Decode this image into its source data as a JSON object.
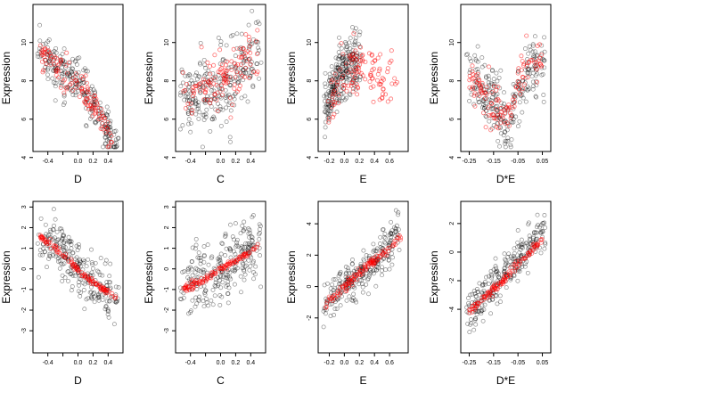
{
  "chart_data": [
    {
      "type": "scatter",
      "xlabel": "D",
      "ylabel": "Expression",
      "xlim": [
        -0.55,
        0.55
      ],
      "ylim": [
        4.5,
        11.8
      ],
      "xticks": [
        -0.4,
        -0.2,
        0.0,
        0.2,
        0.4
      ],
      "xtick_labels": [
        "-0.4",
        "",
        "0.0",
        "0.2",
        "0.4"
      ],
      "yticks": [
        4,
        6,
        8,
        10
      ],
      "ytick_labels": [
        "4",
        "6",
        "8",
        "10"
      ],
      "colors": {
        "observed": "#000000",
        "fitted": "#ff0000"
      },
      "observed_trend": [
        [
          -0.5,
          9.8
        ],
        [
          -0.3,
          8.7
        ],
        [
          -0.1,
          8.2
        ],
        [
          0.1,
          7.6
        ],
        [
          0.3,
          6.0
        ],
        [
          0.5,
          4.8
        ]
      ],
      "observed_spread": 1.1,
      "fitted_trend": [
        [
          -0.5,
          9.5
        ],
        [
          -0.3,
          8.6
        ],
        [
          -0.1,
          8.0
        ],
        [
          0.05,
          7.6
        ],
        [
          0.2,
          6.8
        ],
        [
          0.35,
          5.8
        ],
        [
          0.45,
          4.8
        ]
      ],
      "fitted_spread": 0.7
    },
    {
      "type": "scatter",
      "xlabel": "C",
      "ylabel": "Expression",
      "xlim": [
        -0.55,
        0.55
      ],
      "ylim": [
        4.5,
        11.8
      ],
      "xticks": [
        -0.4,
        -0.2,
        0.0,
        0.2,
        0.4
      ],
      "xtick_labels": [
        "-0.4",
        "",
        "0.0",
        "0.2",
        "0.4"
      ],
      "yticks": [
        4,
        6,
        8,
        10
      ],
      "ytick_labels": [
        "4",
        "6",
        "8",
        "10"
      ],
      "colors": {
        "observed": "#000000",
        "fitted": "#ff0000"
      },
      "observed_trend": [
        [
          -0.5,
          7.2
        ],
        [
          -0.2,
          7.5
        ],
        [
          0.0,
          7.8
        ],
        [
          0.2,
          8.3
        ],
        [
          0.5,
          9.5
        ]
      ],
      "observed_spread": 1.8,
      "fitted_trend": [
        [
          -0.5,
          7.4
        ],
        [
          -0.2,
          7.7
        ],
        [
          0.0,
          8.0
        ],
        [
          0.2,
          8.5
        ],
        [
          0.5,
          9.7
        ]
      ],
      "fitted_spread": 1.2
    },
    {
      "type": "scatter",
      "xlabel": "E",
      "ylabel": "Expression",
      "xlim": [
        -0.3,
        0.8
      ],
      "ylim": [
        4.5,
        11.8
      ],
      "xticks": [
        -0.2,
        0.0,
        0.2,
        0.4,
        0.6
      ],
      "xtick_labels": [
        "-0.2",
        "0.0",
        "0.2",
        "0.4",
        "0.6"
      ],
      "yticks": [
        4,
        6,
        8,
        10
      ],
      "ytick_labels": [
        "4",
        "6",
        "8",
        "10"
      ],
      "colors": {
        "observed": "#000000",
        "fitted": "#ff0000"
      },
      "observed_trend": [
        [
          -0.25,
          6.5
        ],
        [
          -0.1,
          8.0
        ],
        [
          0.0,
          8.6
        ],
        [
          0.1,
          8.9
        ],
        [
          0.2,
          9.2
        ]
      ],
      "observed_spread": 1.5,
      "fitted_trend": [
        [
          -0.25,
          6.0
        ],
        [
          -0.15,
          7.2
        ],
        [
          0.0,
          8.3
        ],
        [
          0.2,
          9.0
        ],
        [
          0.4,
          8.0
        ],
        [
          0.7,
          8.0
        ]
      ],
      "fitted_spread": 1.0
    },
    {
      "type": "scatter",
      "xlabel": "D*E",
      "ylabel": "Expression",
      "xlim": [
        -0.27,
        0.07
      ],
      "ylim": [
        4.5,
        11.8
      ],
      "xticks": [
        -0.25,
        -0.15,
        -0.05,
        0.05
      ],
      "xtick_labels": [
        "-0.25",
        "-0.15",
        "-0.05",
        "0.05"
      ],
      "yticks": [
        4,
        6,
        8,
        10
      ],
      "ytick_labels": [
        "4",
        "6",
        "8",
        "10"
      ],
      "colors": {
        "observed": "#000000",
        "fitted": "#ff0000"
      },
      "observed_trend": [
        [
          -0.25,
          8.5
        ],
        [
          -0.15,
          7.0
        ],
        [
          -0.1,
          5.5
        ],
        [
          -0.05,
          7.5
        ],
        [
          0.0,
          8.5
        ],
        [
          0.05,
          8.8
        ]
      ],
      "observed_spread": 1.4,
      "fitted_trend": [
        [
          -0.25,
          8.0
        ],
        [
          -0.15,
          7.0
        ],
        [
          -0.1,
          5.8
        ],
        [
          -0.05,
          7.8
        ],
        [
          0.0,
          9.0
        ],
        [
          0.05,
          8.8
        ]
      ],
      "fitted_spread": 1.0
    },
    {
      "type": "scatter",
      "xlabel": "D",
      "ylabel": "Expression",
      "xlim": [
        -0.55,
        0.55
      ],
      "ylim": [
        -3.9,
        3.1
      ],
      "xticks": [
        -0.4,
        -0.2,
        0.0,
        0.2,
        0.4
      ],
      "xtick_labels": [
        "-0.4",
        "",
        "0.0",
        "0.2",
        "0.4"
      ],
      "yticks": [
        -3,
        -2,
        -1,
        0,
        1,
        2,
        3
      ],
      "ytick_labels": [
        "-3",
        "-2",
        "-1",
        "0",
        "1",
        "2",
        "3"
      ],
      "colors": {
        "observed": "#000000",
        "fitted": "#ff0000"
      },
      "observed_trend": [
        [
          -0.5,
          1.5
        ],
        [
          -0.2,
          0.8
        ],
        [
          0.0,
          0.0
        ],
        [
          0.2,
          -0.6
        ],
        [
          0.5,
          -1.3
        ]
      ],
      "observed_spread": 1.1,
      "fitted_trend": [
        [
          -0.5,
          1.6
        ],
        [
          -0.3,
          1.0
        ],
        [
          -0.1,
          0.3
        ],
        [
          0.1,
          -0.4
        ],
        [
          0.3,
          -0.9
        ],
        [
          0.5,
          -1.4
        ]
      ],
      "fitted_spread": 0.12
    },
    {
      "type": "scatter",
      "xlabel": "C",
      "ylabel": "Expression",
      "xlim": [
        -0.55,
        0.55
      ],
      "ylim": [
        -3.9,
        3.1
      ],
      "xticks": [
        -0.4,
        -0.2,
        0.0,
        0.2,
        0.4
      ],
      "xtick_labels": [
        "-0.4",
        "",
        "0.0",
        "0.2",
        "0.4"
      ],
      "yticks": [
        -3,
        -2,
        -1,
        0,
        1,
        2,
        3
      ],
      "ytick_labels": [
        "-3",
        "-2",
        "-1",
        "0",
        "1",
        "2",
        "3"
      ],
      "colors": {
        "observed": "#000000",
        "fitted": "#ff0000"
      },
      "observed_trend": [
        [
          -0.5,
          -0.9
        ],
        [
          -0.2,
          -0.4
        ],
        [
          0.0,
          0.0
        ],
        [
          0.2,
          0.4
        ],
        [
          0.5,
          1.2
        ]
      ],
      "observed_spread": 1.3,
      "fitted_trend": [
        [
          -0.5,
          -1.0
        ],
        [
          -0.2,
          -0.5
        ],
        [
          0.0,
          0.0
        ],
        [
          0.2,
          0.4
        ],
        [
          0.5,
          1.1
        ]
      ],
      "fitted_spread": 0.12
    },
    {
      "type": "scatter",
      "xlabel": "E",
      "ylabel": "Expression",
      "xlim": [
        -0.3,
        0.8
      ],
      "ylim": [
        -4.0,
        5.2
      ],
      "xticks": [
        -0.2,
        0.0,
        0.2,
        0.4,
        0.6
      ],
      "xtick_labels": [
        "-0.2",
        "0.0",
        "0.2",
        "0.4",
        "0.6"
      ],
      "yticks": [
        -2,
        0,
        2,
        4
      ],
      "ytick_labels": [
        "-2",
        "0",
        "2",
        "4"
      ],
      "colors": {
        "observed": "#000000",
        "fitted": "#ff0000"
      },
      "observed_trend": [
        [
          -0.25,
          -1.0
        ],
        [
          0.0,
          0.0
        ],
        [
          0.2,
          0.8
        ],
        [
          0.5,
          2.0
        ],
        [
          0.7,
          3.5
        ]
      ],
      "observed_spread": 1.2,
      "fitted_trend": [
        [
          -0.25,
          -1.2
        ],
        [
          0.0,
          0.0
        ],
        [
          0.2,
          0.9
        ],
        [
          0.4,
          1.6
        ],
        [
          0.6,
          2.4
        ],
        [
          0.75,
          3.2
        ]
      ],
      "fitted_spread": 0.25
    },
    {
      "type": "scatter",
      "xlabel": "D*E",
      "ylabel": "Expression",
      "xlim": [
        -0.27,
        0.07
      ],
      "ylim": [
        -6.8,
        3.3
      ],
      "xticks": [
        -0.25,
        -0.15,
        -0.05,
        0.05
      ],
      "xtick_labels": [
        "-0.25",
        "-0.15",
        "-0.05",
        "0.05"
      ],
      "yticks": [
        -4,
        -2,
        0,
        2
      ],
      "ytick_labels": [
        "-4",
        "-2",
        "0",
        "2"
      ],
      "colors": {
        "observed": "#000000",
        "fitted": "#ff0000"
      },
      "observed_trend": [
        [
          -0.25,
          -4.0
        ],
        [
          -0.15,
          -2.5
        ],
        [
          -0.05,
          -0.5
        ],
        [
          0.0,
          0.5
        ],
        [
          0.05,
          1.2
        ]
      ],
      "observed_spread": 1.3,
      "fitted_trend": [
        [
          -0.25,
          -4.2
        ],
        [
          -0.15,
          -2.6
        ],
        [
          -0.1,
          -1.8
        ],
        [
          -0.05,
          -0.9
        ],
        [
          0.0,
          0.0
        ],
        [
          0.05,
          1.0
        ]
      ],
      "fitted_spread": 0.25
    }
  ]
}
